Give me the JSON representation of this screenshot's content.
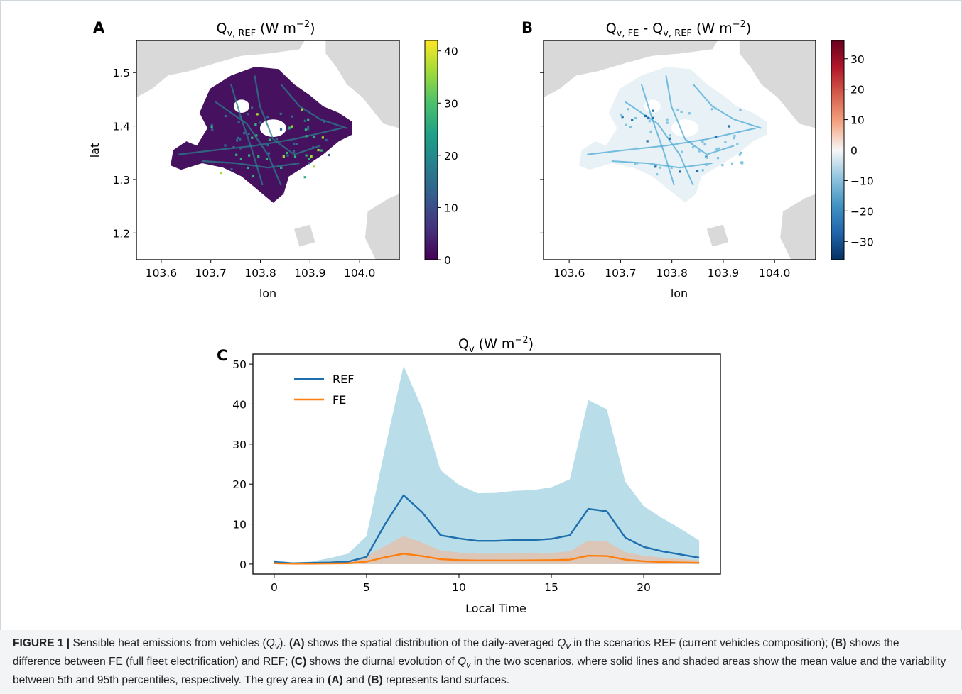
{
  "figure": {
    "panel_a_letter": "A",
    "panel_b_letter": "B",
    "panel_c_letter": "C"
  },
  "chart_data": [
    {
      "panel": "A",
      "type": "heatmap",
      "title": "Q_v,REF (W m^-2)",
      "xlabel": "lon",
      "ylabel": "lat",
      "xlim": [
        103.55,
        104.08
      ],
      "ylim": [
        1.15,
        1.56
      ],
      "xticks": [
        103.6,
        103.7,
        103.8,
        103.9,
        104.0
      ],
      "xtick_labels": [
        "103.6",
        "103.7",
        "103.8",
        "103.9",
        "104.0"
      ],
      "yticks": [
        1.2,
        1.3,
        1.4,
        1.5
      ],
      "ytick_labels": [
        "1.2",
        "1.3",
        "1.4",
        "1.5"
      ],
      "colormap": "viridis",
      "colorbar_range": [
        0,
        42
      ],
      "colorbar_ticks": [
        0,
        10,
        20,
        30,
        40
      ],
      "colorbar_tick_labels": [
        "0",
        "10",
        "20",
        "30",
        "40"
      ],
      "land_color": "#d9d9d9"
    },
    {
      "panel": "B",
      "type": "heatmap",
      "title": "Q_v,FE - Q_v,REF (W m^-2)",
      "xlabel": "lon",
      "xlim": [
        103.55,
        104.08
      ],
      "ylim": [
        1.15,
        1.56
      ],
      "xticks": [
        103.6,
        103.7,
        103.8,
        103.9,
        104.0
      ],
      "xtick_labels": [
        "103.6",
        "103.7",
        "103.8",
        "103.9",
        "104.0"
      ],
      "colormap": "RdBu_r",
      "colorbar_range": [
        -36,
        36
      ],
      "colorbar_ticks": [
        30,
        20,
        10,
        0,
        -10,
        -20,
        -30
      ],
      "colorbar_tick_labels": [
        "30",
        "20",
        "10",
        "0",
        "−10",
        "−20",
        "−30"
      ],
      "land_color": "#d9d9d9"
    },
    {
      "panel": "C",
      "type": "line",
      "title": "Q_v (W m^-2)",
      "xlabel": "Local Time",
      "ylabel": "",
      "xlim": [
        -1.15,
        24.15
      ],
      "ylim": [
        -2.5,
        52.5
      ],
      "xticks": [
        0,
        5,
        10,
        15,
        20
      ],
      "xtick_labels": [
        "0",
        "5",
        "10",
        "15",
        "20"
      ],
      "yticks": [
        0,
        10,
        20,
        30,
        40,
        50
      ],
      "ytick_labels": [
        "0",
        "10",
        "20",
        "30",
        "40",
        "50"
      ],
      "legend_position": "upper-left",
      "x": [
        0,
        1,
        2,
        3,
        4,
        5,
        6,
        7,
        8,
        9,
        10,
        11,
        12,
        13,
        14,
        15,
        16,
        17,
        18,
        19,
        20,
        21,
        22,
        23
      ],
      "series": [
        {
          "name": "REF",
          "color": "#1f6fae",
          "band_color": "#add8e6",
          "mean": [
            0.5,
            0.2,
            0.3,
            0.4,
            0.6,
            1.8,
            10.0,
            17.2,
            13.0,
            7.2,
            6.4,
            5.8,
            5.8,
            6.0,
            6.0,
            6.3,
            7.2,
            13.8,
            13.2,
            6.6,
            4.3,
            3.2,
            2.4,
            1.6
          ],
          "p5": [
            0,
            0,
            0,
            0,
            0,
            0,
            0,
            0,
            0,
            0,
            0,
            0,
            0,
            0,
            0,
            0,
            0,
            0,
            0,
            0,
            0,
            0,
            0,
            0
          ],
          "p95": [
            1.0,
            0.4,
            0.6,
            1.5,
            2.6,
            7.0,
            29.0,
            49.5,
            39.0,
            23.5,
            19.8,
            17.7,
            17.8,
            18.3,
            18.5,
            19.2,
            21.2,
            41.0,
            38.7,
            20.6,
            14.5,
            11.5,
            8.8,
            5.9
          ]
        },
        {
          "name": "FE",
          "color": "#ff7f0e",
          "band_color": "#e0c2ae",
          "mean": [
            0.2,
            0.1,
            0.1,
            0.15,
            0.2,
            0.6,
            1.7,
            2.6,
            2.0,
            1.2,
            1.0,
            0.9,
            0.9,
            0.9,
            0.95,
            1.0,
            1.1,
            2.1,
            2.0,
            1.1,
            0.7,
            0.5,
            0.4,
            0.3
          ],
          "p5": [
            0,
            0,
            0,
            0,
            0,
            0,
            0,
            0,
            0,
            0,
            0,
            0,
            0,
            0,
            0,
            0,
            0,
            0,
            0,
            0,
            0,
            0,
            0,
            0
          ],
          "p95": [
            0.4,
            0.2,
            0.2,
            0.4,
            0.7,
            2.0,
            4.5,
            7.0,
            5.4,
            3.4,
            2.9,
            2.6,
            2.6,
            2.7,
            2.7,
            2.8,
            3.2,
            5.9,
            5.6,
            3.0,
            2.1,
            1.6,
            1.3,
            0.9
          ]
        }
      ]
    }
  ],
  "caption": {
    "label": "FIGURE 1 |",
    "t1": " Sensible heat emissions from vehicles (",
    "qv": "Q",
    "qv_sub": "v",
    "t2": "). ",
    "a": "(A)",
    "t3": " shows the spatial distribution of the daily-averaged ",
    "t4": " in the scenarios REF (current vehicles composition); ",
    "b": "(B)",
    "t5": " shows the difference between FE (full fleet electrification) and REF; ",
    "c": "(C)",
    "t6": " shows the diurnal evolution of ",
    "t7": " in the two scenarios, where solid lines and shaded areas show the mean value and the variability between 5th and 95th percentiles, respectively. The grey area in ",
    "t8": " and ",
    "t9": " represents land surfaces."
  }
}
